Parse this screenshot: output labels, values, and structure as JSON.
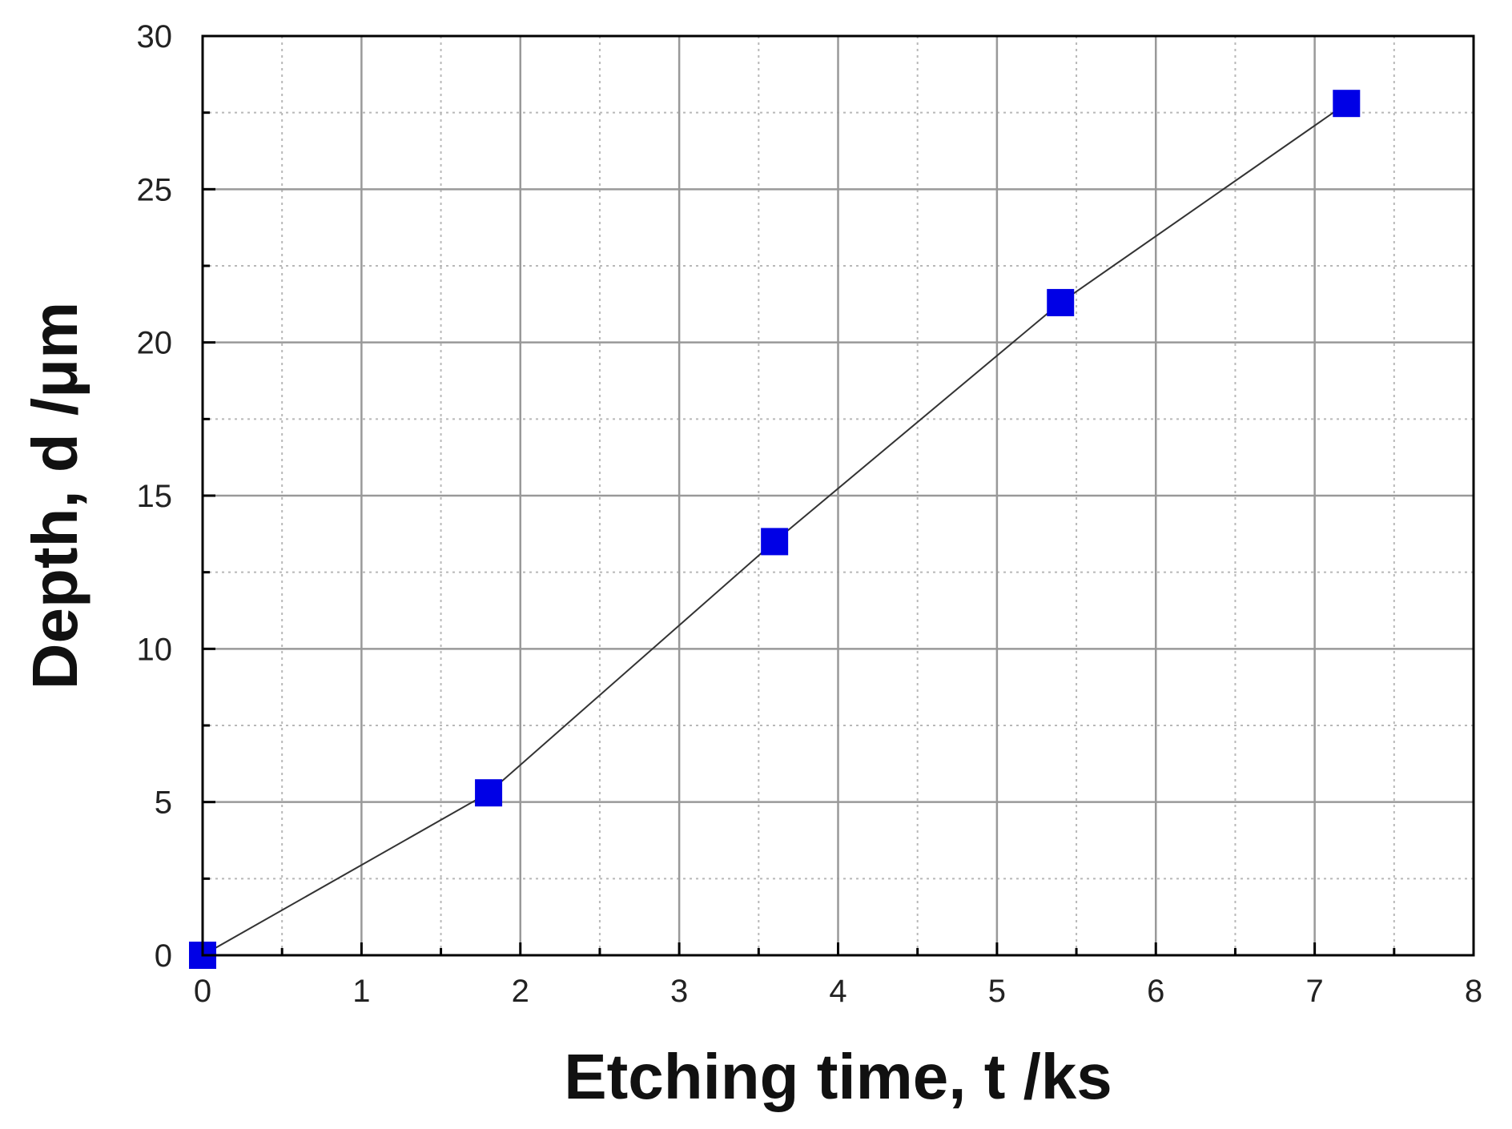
{
  "chart_data": {
    "type": "line",
    "title": "",
    "xlabel": "Etching time, t /ks",
    "ylabel": "Depth, d /μm",
    "xlim": [
      0,
      8
    ],
    "ylim": [
      0,
      30
    ],
    "x_ticks": [
      0,
      1,
      2,
      3,
      4,
      5,
      6,
      7,
      8
    ],
    "y_ticks": [
      0,
      5,
      10,
      15,
      20,
      25,
      30
    ],
    "x_minor_step": 0.5,
    "y_minor_step": 2.5,
    "grid": true,
    "legend": "none",
    "series": [
      {
        "x": [
          0,
          1.8,
          3.6,
          5.4,
          7.2
        ],
        "y": [
          0,
          5.3,
          13.5,
          21.3,
          27.8
        ],
        "marker": "square",
        "marker_color": "#0000e6",
        "line_color": "#333333"
      }
    ]
  }
}
